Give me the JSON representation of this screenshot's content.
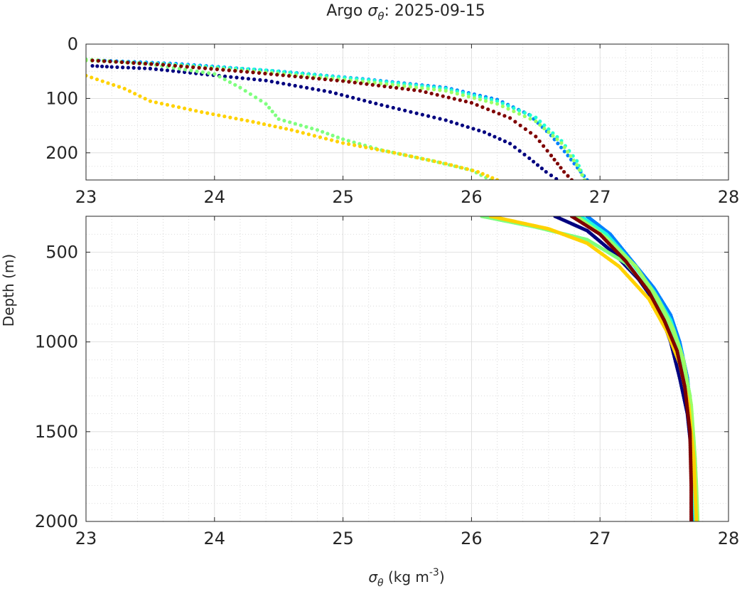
{
  "chart_data": {
    "type": "scatter",
    "title_prefix": "Argo ",
    "title_symbol": "σ",
    "title_subscript": "θ",
    "title_suffix": ": 2025-09-15",
    "xlabel_symbol": "σ",
    "xlabel_subscript": "θ",
    "xlabel_unit": " (kg m",
    "xlabel_unit_sup": "-3",
    "xlabel_unit_close": ")",
    "ylabel": "Depth (m)",
    "grid": true,
    "panels": [
      {
        "name": "upper",
        "xlim": [
          23,
          28
        ],
        "ylim": [
          0,
          250
        ],
        "y_reversed": true,
        "xticks": [
          "23",
          "24",
          "25",
          "26",
          "27",
          "28"
        ],
        "yticks": [
          "0",
          "100",
          "200"
        ],
        "ytick_values": [
          0,
          100,
          200
        ]
      },
      {
        "name": "lower",
        "xlim": [
          23,
          28
        ],
        "ylim": [
          300,
          2000
        ],
        "y_reversed": true,
        "xticks": [
          "23",
          "24",
          "25",
          "26",
          "27",
          "28"
        ],
        "yticks": [
          "500",
          "1000",
          "1500",
          "2000"
        ],
        "ytick_values": [
          500,
          1000,
          1500,
          2000
        ]
      }
    ],
    "series": [
      {
        "color": "#00007f",
        "points": [
          [
            23.05,
            40
          ],
          [
            23.2,
            42
          ],
          [
            23.5,
            45
          ],
          [
            23.9,
            55
          ],
          [
            24.4,
            67
          ],
          [
            24.9,
            88
          ],
          [
            25.3,
            112
          ],
          [
            25.8,
            140
          ],
          [
            26.1,
            162
          ],
          [
            26.3,
            183
          ],
          [
            26.45,
            210
          ],
          [
            26.58,
            235
          ],
          [
            26.66,
            248
          ],
          [
            26.65,
            300
          ],
          [
            26.9,
            380
          ],
          [
            27.1,
            500
          ],
          [
            27.3,
            650
          ],
          [
            27.45,
            800
          ],
          [
            27.55,
            1000
          ],
          [
            27.62,
            1200
          ],
          [
            27.68,
            1400
          ],
          [
            27.71,
            1600
          ],
          [
            27.72,
            1800
          ],
          [
            27.73,
            2000
          ]
        ]
      },
      {
        "color": "#0080ff",
        "points": [
          [
            23.1,
            30
          ],
          [
            23.7,
            36
          ],
          [
            24.5,
            50
          ],
          [
            25.2,
            65
          ],
          [
            25.8,
            80
          ],
          [
            26.2,
            102
          ],
          [
            26.45,
            130
          ],
          [
            26.62,
            168
          ],
          [
            26.75,
            205
          ],
          [
            26.85,
            235
          ],
          [
            26.9,
            250
          ],
          [
            26.9,
            300
          ],
          [
            27.08,
            400
          ],
          [
            27.25,
            550
          ],
          [
            27.42,
            700
          ],
          [
            27.55,
            850
          ],
          [
            27.62,
            1000
          ],
          [
            27.68,
            1200
          ],
          [
            27.72,
            1500
          ],
          [
            27.74,
            2000
          ]
        ]
      },
      {
        "color": "#22ffd4",
        "points": [
          [
            23.0,
            30
          ],
          [
            23.6,
            36
          ],
          [
            24.4,
            48
          ],
          [
            25.2,
            66
          ],
          [
            25.8,
            82
          ],
          [
            26.2,
            105
          ],
          [
            26.5,
            135
          ],
          [
            26.7,
            178
          ],
          [
            26.82,
            215
          ],
          [
            26.88,
            250
          ],
          [
            26.85,
            300
          ],
          [
            27.05,
            400
          ],
          [
            27.25,
            560
          ],
          [
            27.42,
            720
          ],
          [
            27.55,
            880
          ],
          [
            27.63,
            1050
          ],
          [
            27.7,
            1300
          ],
          [
            27.73,
            1600
          ],
          [
            27.74,
            2000
          ]
        ]
      },
      {
        "color": "#7fff7f",
        "points": [
          [
            23.0,
            28
          ],
          [
            23.5,
            37
          ],
          [
            24.0,
            55
          ],
          [
            24.2,
            80
          ],
          [
            24.4,
            110
          ],
          [
            24.5,
            138
          ],
          [
            24.8,
            158
          ],
          [
            25.0,
            175
          ],
          [
            25.3,
            195
          ],
          [
            25.7,
            215
          ],
          [
            26.0,
            232
          ],
          [
            26.15,
            250
          ],
          [
            26.08,
            300
          ],
          [
            26.5,
            360
          ],
          [
            26.9,
            430
          ],
          [
            27.2,
            560
          ],
          [
            27.42,
            740
          ],
          [
            27.55,
            920
          ],
          [
            27.64,
            1100
          ],
          [
            27.7,
            1300
          ],
          [
            27.73,
            1550
          ],
          [
            27.75,
            1800
          ],
          [
            27.76,
            2000
          ]
        ]
      },
      {
        "color": "#9aff65",
        "points": [
          [
            23.0,
            30
          ],
          [
            23.6,
            37
          ],
          [
            24.4,
            52
          ],
          [
            25.2,
            70
          ],
          [
            25.8,
            86
          ],
          [
            26.2,
            110
          ],
          [
            26.5,
            142
          ],
          [
            26.7,
            182
          ],
          [
            26.82,
            222
          ],
          [
            26.88,
            250
          ],
          [
            26.82,
            300
          ],
          [
            27.05,
            420
          ],
          [
            27.28,
            580
          ],
          [
            27.45,
            760
          ],
          [
            27.57,
            930
          ],
          [
            27.65,
            1100
          ],
          [
            27.71,
            1350
          ],
          [
            27.74,
            1650
          ],
          [
            27.76,
            2000
          ]
        ]
      },
      {
        "color": "#ffd200",
        "points": [
          [
            23.0,
            58
          ],
          [
            23.3,
            82
          ],
          [
            23.5,
            105
          ],
          [
            23.9,
            125
          ],
          [
            24.3,
            143
          ],
          [
            24.6,
            158
          ],
          [
            25.0,
            182
          ],
          [
            25.4,
            200
          ],
          [
            25.8,
            220
          ],
          [
            26.05,
            235
          ],
          [
            26.2,
            250
          ],
          [
            26.15,
            300
          ],
          [
            26.6,
            370
          ],
          [
            26.9,
            450
          ],
          [
            27.15,
            580
          ],
          [
            27.38,
            760
          ],
          [
            27.52,
            940
          ],
          [
            27.62,
            1120
          ],
          [
            27.69,
            1350
          ],
          [
            27.73,
            1650
          ],
          [
            27.75,
            2000
          ]
        ]
      },
      {
        "color": "#7f0000",
        "points": [
          [
            23.05,
            30
          ],
          [
            23.6,
            38
          ],
          [
            24.3,
            52
          ],
          [
            25.0,
            68
          ],
          [
            25.6,
            86
          ],
          [
            26.0,
            108
          ],
          [
            26.3,
            136
          ],
          [
            26.5,
            170
          ],
          [
            26.62,
            205
          ],
          [
            26.72,
            235
          ],
          [
            26.78,
            250
          ],
          [
            26.78,
            300
          ],
          [
            27.0,
            400
          ],
          [
            27.2,
            550
          ],
          [
            27.38,
            720
          ],
          [
            27.5,
            880
          ],
          [
            27.6,
            1050
          ],
          [
            27.66,
            1250
          ],
          [
            27.7,
            1500
          ],
          [
            27.71,
            1800
          ],
          [
            27.71,
            2000
          ]
        ]
      }
    ]
  }
}
